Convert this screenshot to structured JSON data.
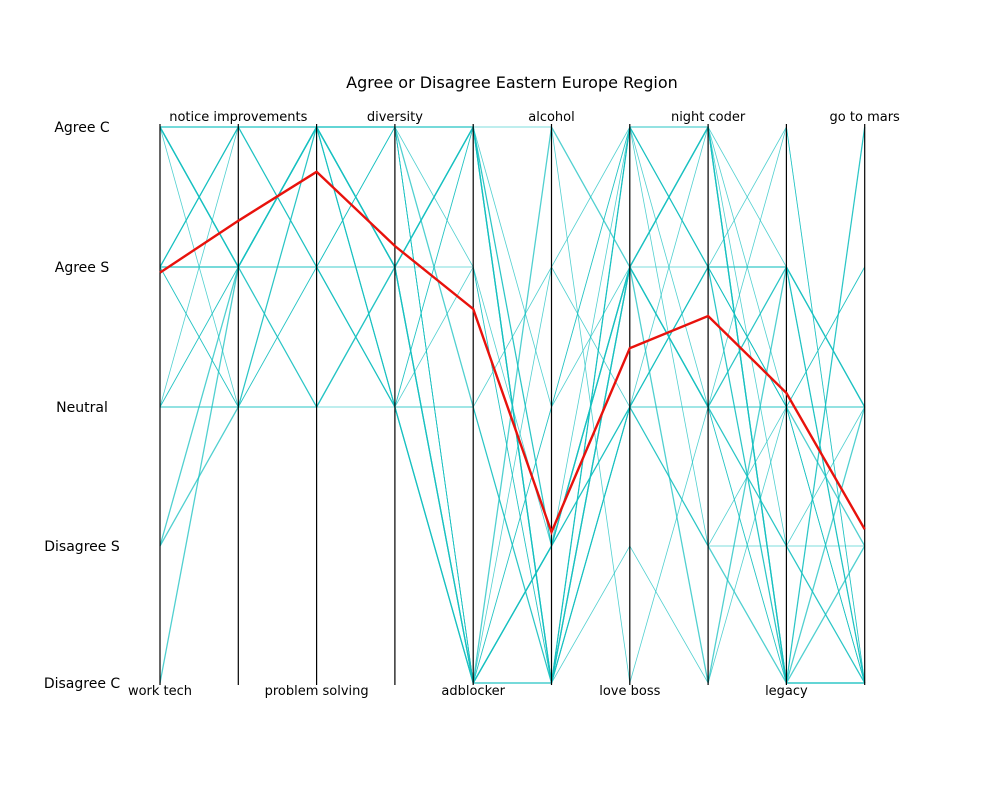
{
  "chart_data": {
    "type": "parallel-coordinates",
    "title": "Agree or Disagree Eastern Europe Region",
    "levels": [
      "Agree C",
      "Agree S",
      "Neutral",
      "Disagree S",
      "Disagree C"
    ],
    "axes": [
      {
        "name": "work tech",
        "label_position": "bottom"
      },
      {
        "name": "notice improvements",
        "label_position": "top"
      },
      {
        "name": "problem solving",
        "label_position": "bottom"
      },
      {
        "name": "diversity",
        "label_position": "top"
      },
      {
        "name": "adblocker",
        "label_position": "bottom"
      },
      {
        "name": "alcohol",
        "label_position": "top"
      },
      {
        "name": "love boss",
        "label_position": "bottom"
      },
      {
        "name": "night coder",
        "label_position": "top"
      },
      {
        "name": "legacy",
        "label_position": "bottom"
      },
      {
        "name": "go to mars",
        "label_position": "top"
      }
    ],
    "average": {
      "color": "#e8120c",
      "values": [
        1.04,
        0.67,
        0.32,
        0.85,
        1.3,
        2.9,
        1.58,
        1.35,
        1.9,
        2.88
      ]
    },
    "responses_color": "#17c0c0",
    "responses": [
      [
        0,
        0,
        0,
        0,
        0,
        4,
        1,
        0,
        4,
        4
      ],
      [
        1,
        1,
        0,
        1,
        4,
        4,
        2,
        1,
        4,
        4
      ],
      [
        0,
        0,
        0,
        0,
        0,
        3,
        0,
        1,
        2,
        2
      ],
      [
        1,
        0,
        1,
        2,
        4,
        3,
        1,
        2,
        1,
        4
      ],
      [
        2,
        1,
        0,
        2,
        0,
        2,
        0,
        0,
        3,
        3
      ],
      [
        1,
        2,
        1,
        1,
        0,
        4,
        2,
        2,
        4,
        4
      ],
      [
        0,
        1,
        0,
        2,
        4,
        3,
        2,
        1,
        1,
        2
      ],
      [
        2,
        0,
        0,
        0,
        0,
        4,
        0,
        0,
        2,
        1
      ],
      [
        0,
        0,
        1,
        1,
        1,
        3,
        1,
        2,
        0,
        4
      ],
      [
        1,
        1,
        0,
        0,
        2,
        4,
        2,
        3,
        4,
        2
      ],
      [
        0,
        1,
        2,
        2,
        4,
        2,
        1,
        1,
        2,
        4
      ],
      [
        1,
        0,
        0,
        1,
        0,
        0,
        4,
        2,
        3,
        4
      ],
      [
        2,
        2,
        2,
        1,
        4,
        4,
        0,
        1,
        4,
        0
      ],
      [
        0,
        0,
        0,
        2,
        1,
        4,
        3,
        4,
        2,
        2
      ],
      [
        1,
        1,
        1,
        0,
        4,
        3,
        2,
        0,
        1,
        4
      ],
      [
        3,
        2,
        0,
        1,
        0,
        4,
        1,
        2,
        2,
        3
      ],
      [
        0,
        1,
        1,
        0,
        4,
        4,
        0,
        1,
        0,
        4
      ],
      [
        1,
        0,
        0,
        2,
        2,
        1,
        2,
        3,
        3,
        2
      ],
      [
        4,
        1,
        0,
        1,
        0,
        4,
        1,
        0,
        4,
        4
      ],
      [
        0,
        0,
        1,
        2,
        4,
        3,
        2,
        1,
        2,
        1
      ],
      [
        1,
        2,
        0,
        0,
        1,
        4,
        0,
        2,
        4,
        4
      ],
      [
        0,
        1,
        0,
        1,
        4,
        0,
        1,
        4,
        1,
        2
      ],
      [
        2,
        1,
        1,
        0,
        0,
        4,
        2,
        1,
        2,
        4
      ],
      [
        1,
        0,
        0,
        2,
        4,
        2,
        0,
        0,
        4,
        0
      ],
      [
        0,
        1,
        2,
        1,
        0,
        3,
        1,
        2,
        3,
        4
      ],
      [
        1,
        0,
        0,
        0,
        4,
        4,
        2,
        1,
        1,
        2
      ],
      [
        0,
        2,
        1,
        2,
        2,
        4,
        0,
        3,
        2,
        4
      ],
      [
        3,
        1,
        0,
        1,
        4,
        3,
        1,
        0,
        4,
        3
      ],
      [
        1,
        1,
        1,
        2,
        0,
        4,
        2,
        2,
        1,
        4
      ],
      [
        0,
        0,
        0,
        0,
        4,
        1,
        0,
        1,
        2,
        2
      ]
    ]
  }
}
